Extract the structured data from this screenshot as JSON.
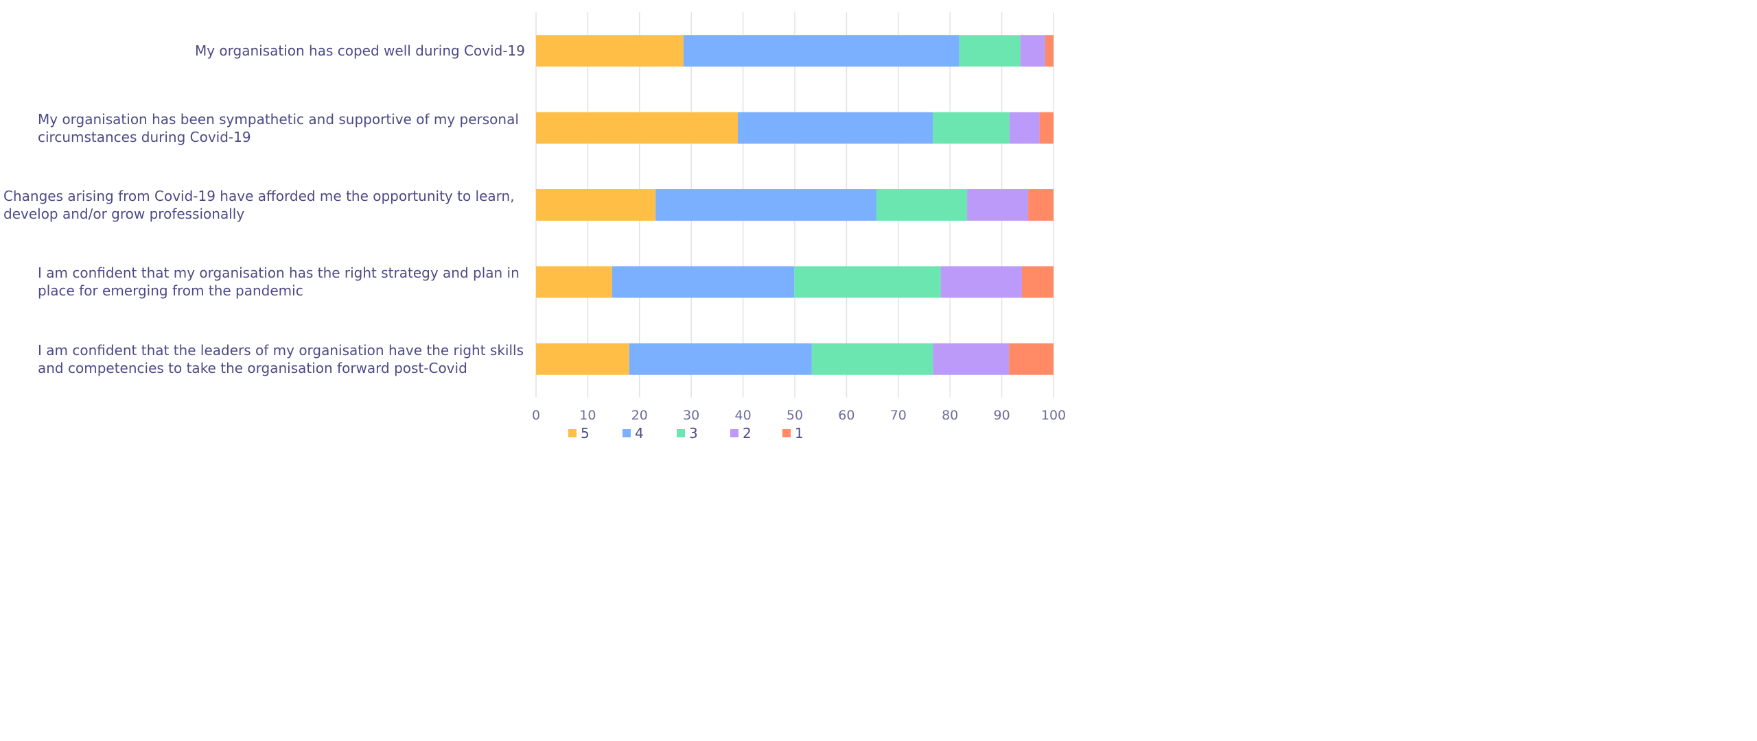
{
  "chart_data": {
    "type": "bar",
    "orientation": "horizontal",
    "stacked": true,
    "categories": [
      "My organisation has coped well during Covid-19",
      "My organisation has been sympathetic and supportive of my personal circumstances during Covid-19",
      "Changes arising from Covid-19 have afforded me the opportunity to learn, develop and/or grow professionally",
      "I am confident that my organisation has the right strategy and plan in place for emerging from the pandemic",
      "I am confident that the leaders of my organisation have the right skills and competencies to take the organisation forward post-Covid"
    ],
    "series": [
      {
        "name": "5",
        "color": "#FFBE45",
        "values": [
          28.5,
          39.0,
          23.1,
          14.7,
          18.0
        ]
      },
      {
        "name": "4",
        "color": "#7BAFFF",
        "values": [
          53.3,
          37.7,
          42.7,
          35.2,
          35.3
        ]
      },
      {
        "name": "3",
        "color": "#6BE6B0",
        "values": [
          11.8,
          14.8,
          17.5,
          28.3,
          23.4
        ]
      },
      {
        "name": "2",
        "color": "#BB9AFA",
        "values": [
          4.8,
          5.8,
          11.8,
          15.7,
          14.7
        ]
      },
      {
        "name": "1",
        "color": "#FF8A65",
        "values": [
          1.6,
          2.7,
          4.9,
          6.1,
          8.6
        ]
      }
    ],
    "xlim": [
      0,
      100
    ],
    "xticks": [
      "0",
      "10",
      "20",
      "30",
      "40",
      "50",
      "60",
      "70",
      "80",
      "90",
      "100"
    ],
    "grid": true,
    "legend": "bottom",
    "title": "",
    "xlabel": "",
    "ylabel": ""
  }
}
